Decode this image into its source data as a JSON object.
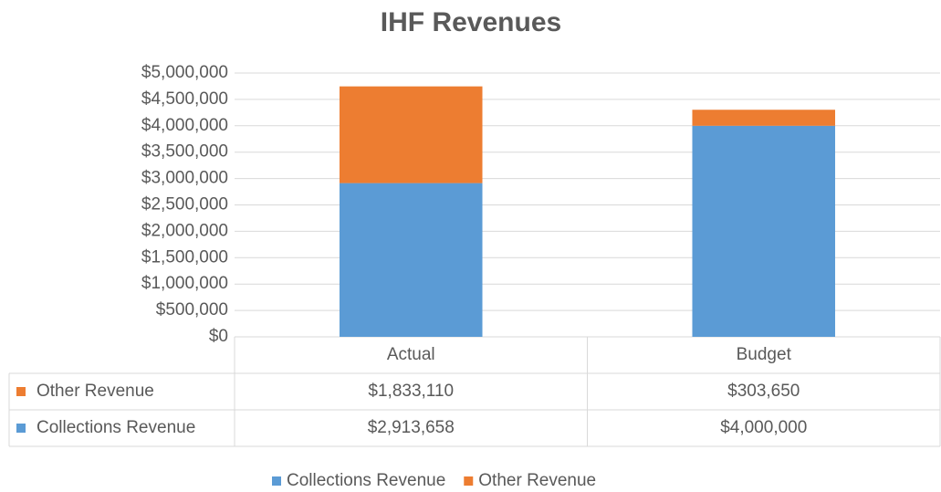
{
  "chart_data": {
    "type": "bar",
    "stacked": true,
    "title": "IHF Revenues",
    "categories": [
      "Actual",
      "Budget"
    ],
    "series": [
      {
        "name": "Collections Revenue",
        "color": "#5b9bd5",
        "values": [
          2913658,
          4000000
        ],
        "value_labels": [
          "$2,913,658",
          "$4,000,000"
        ]
      },
      {
        "name": "Other Revenue",
        "color": "#ed7d31",
        "values": [
          1833110,
          303650
        ],
        "value_labels": [
          "$1,833,110",
          "$303,650"
        ]
      }
    ],
    "ylim": [
      0,
      5000000
    ],
    "yticks": [
      {
        "value": 0,
        "label": "$0"
      },
      {
        "value": 500000,
        "label": "$500,000"
      },
      {
        "value": 1000000,
        "label": "$1,000,000"
      },
      {
        "value": 1500000,
        "label": "$1,500,000"
      },
      {
        "value": 2000000,
        "label": "$2,000,000"
      },
      {
        "value": 2500000,
        "label": "$2,500,000"
      },
      {
        "value": 3000000,
        "label": "$3,000,000"
      },
      {
        "value": 3500000,
        "label": "$3,500,000"
      },
      {
        "value": 4000000,
        "label": "$4,000,000"
      },
      {
        "value": 4500000,
        "label": "$4,500,000"
      },
      {
        "value": 5000000,
        "label": "$5,000,000"
      }
    ],
    "grid": true,
    "legend": "bottom",
    "data_table": true
  }
}
